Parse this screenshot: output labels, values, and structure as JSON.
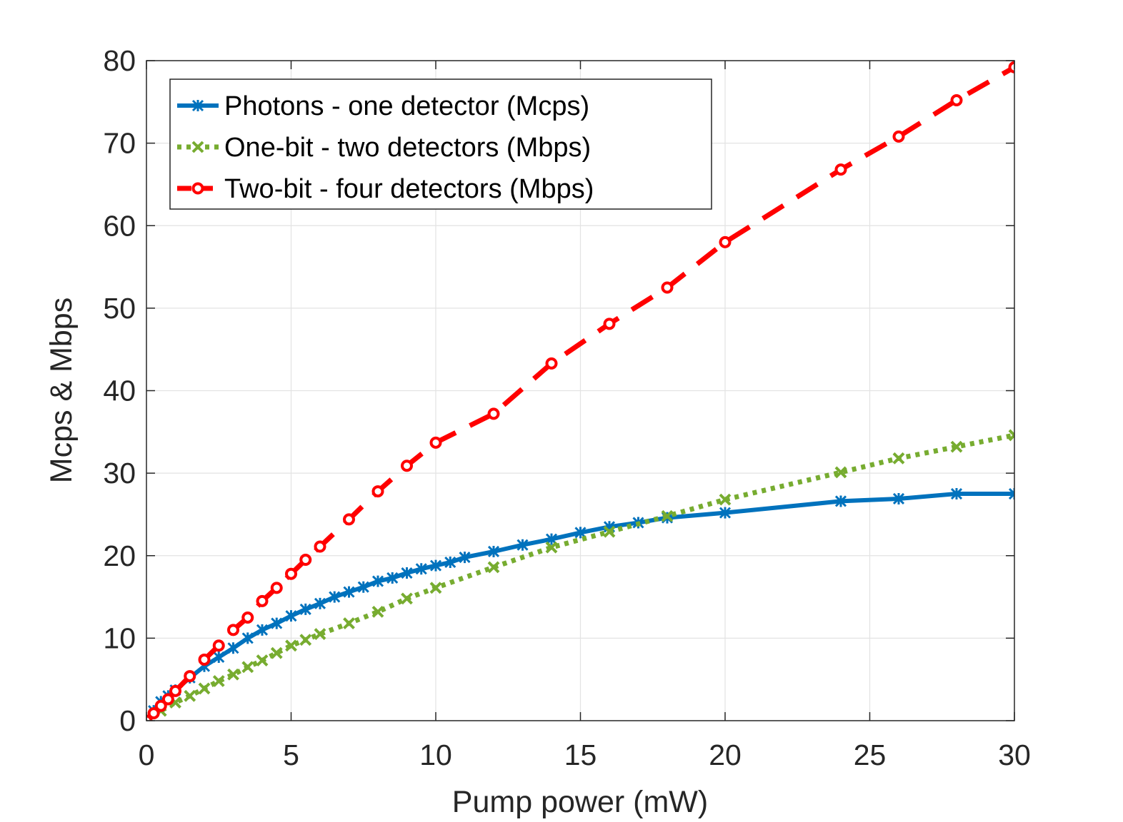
{
  "chart_data": {
    "type": "line",
    "title": "",
    "xlabel": "Pump power (mW)",
    "ylabel": "Mcps & Mbps",
    "xlim": [
      0,
      30
    ],
    "ylim": [
      0,
      80
    ],
    "xticks": [
      0,
      5,
      10,
      15,
      20,
      25,
      30
    ],
    "yticks": [
      0,
      10,
      20,
      30,
      40,
      50,
      60,
      70,
      80
    ],
    "grid": true,
    "legend_position": "top-left",
    "series": [
      {
        "name": "Photons - one detector (Mcps)",
        "color": "#0072BD",
        "line_style": "solid",
        "marker": "star",
        "x": [
          0,
          0.25,
          0.5,
          0.75,
          1,
          1.5,
          2,
          2.5,
          3,
          3.5,
          4,
          4.5,
          5,
          5.5,
          6,
          6.5,
          7,
          7.5,
          8,
          8.5,
          9,
          9.5,
          10,
          10.5,
          11,
          12,
          13,
          14,
          15,
          16,
          17,
          18,
          20,
          24,
          26,
          28,
          30
        ],
        "y": [
          0,
          1.2,
          2.3,
          3.0,
          3.7,
          5.2,
          6.6,
          7.7,
          8.8,
          10.0,
          11.0,
          11.8,
          12.7,
          13.5,
          14.2,
          15.0,
          15.6,
          16.2,
          16.9,
          17.3,
          17.9,
          18.4,
          18.8,
          19.2,
          19.8,
          20.5,
          21.3,
          22.0,
          22.8,
          23.5,
          24.0,
          24.6,
          25.2,
          26.6,
          26.9,
          27.5,
          27.5
        ]
      },
      {
        "name": "One-bit  - two detectors (Mbps)",
        "color": "#77AC30",
        "line_style": "dotted",
        "marker": "x",
        "x": [
          0,
          0.5,
          1,
          1.5,
          2,
          2.5,
          3,
          3.5,
          4,
          4.5,
          5,
          5.5,
          6,
          7,
          8,
          9,
          10,
          12,
          14,
          16,
          18,
          20,
          24,
          26,
          28,
          30
        ],
        "y": [
          0,
          1.2,
          2.2,
          3.0,
          3.9,
          4.8,
          5.6,
          6.5,
          7.3,
          8.2,
          9.1,
          9.8,
          10.5,
          11.8,
          13.2,
          14.8,
          16.1,
          18.6,
          21.0,
          22.9,
          24.8,
          26.8,
          30.1,
          31.8,
          33.2,
          34.6
        ]
      },
      {
        "name": "Two-bit - four detectors (Mbps)",
        "color": "#FF0000",
        "line_style": "dashed",
        "marker": "circle",
        "x": [
          0,
          0.25,
          0.5,
          0.75,
          1,
          1.5,
          2,
          2.5,
          3,
          3.5,
          4,
          4.5,
          5,
          5.5,
          6,
          7,
          8,
          9,
          10,
          12,
          14,
          16,
          18,
          20,
          24,
          26,
          28,
          30
        ],
        "y": [
          0,
          0.9,
          1.8,
          2.6,
          3.6,
          5.4,
          7.4,
          9.1,
          11.0,
          12.5,
          14.5,
          16.1,
          17.8,
          19.5,
          21.1,
          24.4,
          27.8,
          30.9,
          33.7,
          37.2,
          43.3,
          48.1,
          52.5,
          58.0,
          66.8,
          70.8,
          75.2,
          79.2
        ]
      }
    ]
  }
}
